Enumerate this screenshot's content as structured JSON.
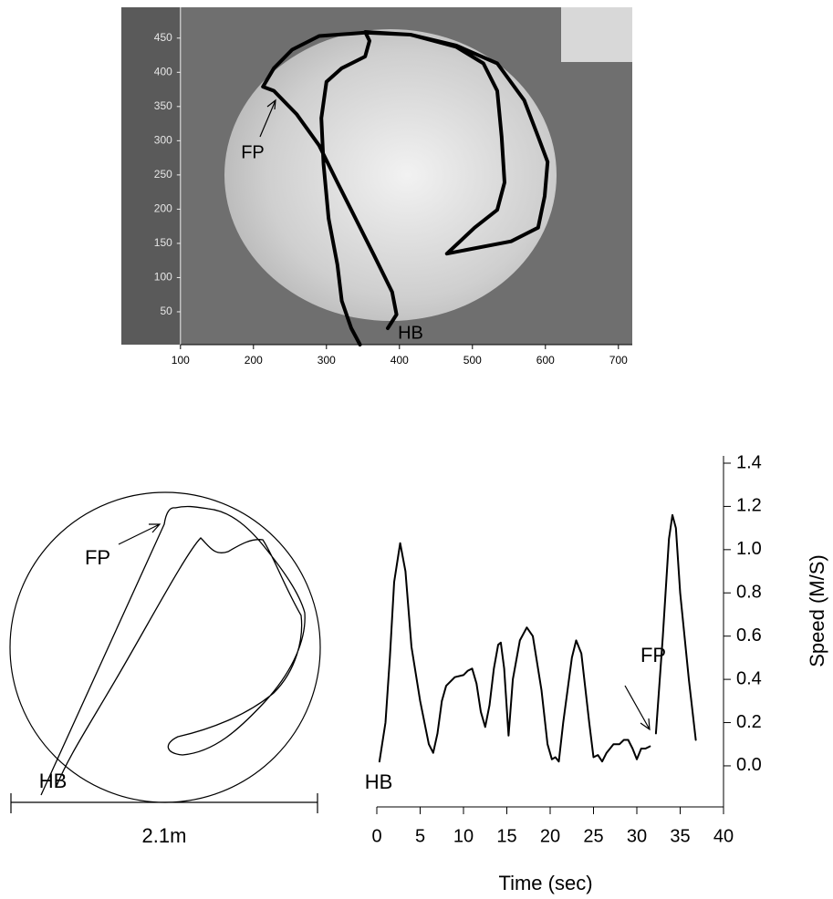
{
  "chart_data": [
    {
      "type": "line",
      "color": "#000000",
      "x": [
        346,
        334,
        321,
        315,
        303,
        296,
        293,
        300,
        321,
        353,
        359,
        353,
        415,
        478,
        515,
        534,
        540,
        544,
        534,
        503,
        465,
        553,
        590,
        599,
        603,
        590,
        571,
        534,
        478,
        415,
        353,
        290,
        253,
        228,
        213,
        228,
        259,
        290,
        315,
        340,
        365,
        390,
        396,
        384
      ],
      "values": [
        2,
        26,
        66,
        119,
        186,
        266,
        333,
        386,
        406,
        423,
        446,
        459,
        455,
        437,
        413,
        373,
        306,
        239,
        199,
        173,
        135,
        153,
        173,
        219,
        269,
        306,
        359,
        413,
        439,
        455,
        458,
        453,
        433,
        406,
        379,
        373,
        339,
        293,
        239,
        186,
        133,
        79,
        46,
        26
      ],
      "xlim": [
        19,
        719
      ],
      "ylim": [
        2,
        495
      ],
      "xticks": [
        100,
        200,
        300,
        400,
        500,
        600,
        700
      ],
      "yticks": [
        50,
        100,
        150,
        200,
        250,
        300,
        350,
        400,
        450
      ],
      "annotations": [
        "FP",
        "HB"
      ]
    },
    {
      "type": "diagram",
      "annotations": [
        "FP",
        "HB"
      ],
      "scale_label": "2.1m"
    },
    {
      "type": "line",
      "color": "#000000",
      "xlabel": "Time (sec)",
      "ylabel": "Speed (M/S)",
      "x": [
        0.3,
        1,
        1.5,
        2,
        2.7,
        3.3,
        4,
        5,
        6,
        6.5,
        7,
        7.5,
        8,
        9,
        10,
        10.5,
        11,
        11.5,
        12,
        12.5,
        13,
        13.5,
        14,
        14.3,
        14.7,
        15.2,
        15.7,
        16.5,
        17.3,
        18,
        19,
        19.7,
        20.2,
        20.6,
        21,
        21.5,
        22.5,
        23,
        23.6,
        24.5,
        25,
        25.5,
        26,
        26.5,
        27.3,
        28,
        28.5,
        29,
        29.5,
        30,
        30.5,
        31,
        31.5,
        31.9,
        32.2,
        33,
        33.7,
        34.1,
        34.5,
        35,
        36,
        36.8
      ],
      "values": [
        0.02,
        0.2,
        0.5,
        0.85,
        1.03,
        0.9,
        0.55,
        0.3,
        0.1,
        0.06,
        0.15,
        0.3,
        0.37,
        0.41,
        0.42,
        0.44,
        0.45,
        0.38,
        0.25,
        0.18,
        0.28,
        0.45,
        0.56,
        0.57,
        0.45,
        0.14,
        0.4,
        0.58,
        0.64,
        0.6,
        0.35,
        0.1,
        0.03,
        0.04,
        0.02,
        0.2,
        0.5,
        0.58,
        0.52,
        0.2,
        0.04,
        0.05,
        0.02,
        0.06,
        0.1,
        0.1,
        0.12,
        0.12,
        0.08,
        0.03,
        0.08,
        0.08,
        0.09,
        null,
        0.15,
        0.6,
        1.05,
        1.16,
        1.1,
        0.8,
        0.4,
        0.12
      ],
      "xlim": [
        0,
        40
      ],
      "ylim": [
        -0.19,
        1.4
      ],
      "xticks": [
        0,
        5,
        10,
        15,
        20,
        25,
        30,
        35,
        40
      ],
      "yticks": [
        {
          "value": 0,
          "label": "0.0"
        },
        {
          "value": 0.2,
          "label": "0.2"
        },
        {
          "value": 0.4,
          "label": "0.4"
        },
        {
          "value": 0.6,
          "label": "0.6"
        },
        {
          "value": 0.8,
          "label": "0.8"
        },
        {
          "value": 1,
          "label": "1.0"
        },
        {
          "value": 1.2,
          "label": "1.2"
        },
        {
          "value": 1.4,
          "label": "1.4"
        }
      ],
      "annotations": [
        "FP",
        "HB"
      ]
    }
  ]
}
